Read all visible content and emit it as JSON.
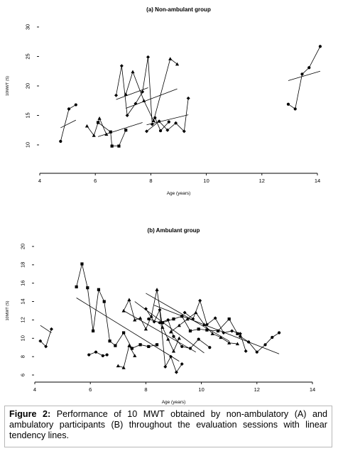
{
  "caption": {
    "label": "Figure 2:",
    "text": "Performance of 10 MWT obtained by non-ambulatory (A) and ambulatory participants (B) throughout the evaluation sessions with linear tendency lines."
  },
  "chart_data": [
    {
      "type": "scatter",
      "title": "(a) Non-ambulant group",
      "xlabel": "Age (years)",
      "ylabel": "10MWT (S)",
      "xlim": [
        4,
        14
      ],
      "ylim": [
        10,
        30
      ],
      "xticks": [
        4,
        6,
        8,
        10,
        12,
        14
      ],
      "yticks": [
        10,
        15,
        20,
        25,
        30
      ],
      "grid": false,
      "series": [
        {
          "marker": "circle",
          "points": [
            [
              4.75,
              10.6
            ],
            [
              5.05,
              16.1
            ],
            [
              5.3,
              16.8
            ]
          ]
        },
        {
          "marker": "triangle",
          "points": [
            [
              5.7,
              13.2
            ],
            [
              5.95,
              11.6
            ],
            [
              6.15,
              14.5
            ],
            [
              6.4,
              11.8
            ]
          ]
        },
        {
          "marker": "square",
          "points": [
            [
              6.1,
              13.8
            ],
            [
              6.55,
              12.2
            ],
            [
              6.6,
              9.8
            ],
            [
              6.85,
              9.8
            ],
            [
              7.1,
              12.5
            ]
          ]
        },
        {
          "marker": "diamond",
          "points": [
            [
              6.75,
              18.4
            ],
            [
              6.95,
              23.4
            ],
            [
              7.15,
              15.0
            ],
            [
              7.45,
              17.0
            ],
            [
              7.7,
              19.0
            ],
            [
              7.9,
              24.9
            ],
            [
              8.05,
              13.5
            ]
          ]
        },
        {
          "marker": "triangle",
          "points": [
            [
              7.1,
              18.6
            ],
            [
              7.35,
              22.4
            ],
            [
              7.75,
              17.5
            ],
            [
              8.1,
              14.1
            ],
            [
              8.7,
              24.6
            ],
            [
              8.95,
              23.7
            ]
          ]
        },
        {
          "marker": "diamond",
          "points": [
            [
              7.85,
              12.3
            ],
            [
              8.3,
              14.0
            ],
            [
              8.6,
              12.5
            ],
            [
              8.9,
              13.7
            ],
            [
              9.2,
              12.3
            ],
            [
              9.35,
              17.9
            ]
          ]
        },
        {
          "marker": "circle",
          "points": [
            [
              8.15,
              14.6
            ],
            [
              8.35,
              12.4
            ],
            [
              8.65,
              13.9
            ]
          ]
        },
        {
          "marker": "circle",
          "points": [
            [
              12.95,
              16.9
            ],
            [
              13.2,
              16.1
            ],
            [
              13.45,
              22.0
            ],
            [
              13.7,
              23.1
            ],
            [
              14.1,
              26.7
            ]
          ]
        }
      ],
      "trendlines": [
        {
          "x": [
            4.75,
            5.3
          ],
          "y": [
            12.9,
            14.2
          ]
        },
        {
          "x": [
            6.1,
            7.7
          ],
          "y": [
            11.4,
            13.8
          ]
        },
        {
          "x": [
            6.75,
            7.9
          ],
          "y": [
            17.7,
            19.7
          ]
        },
        {
          "x": [
            7.1,
            8.95
          ],
          "y": [
            16.2,
            19.5
          ]
        },
        {
          "x": [
            7.85,
            9.35
          ],
          "y": [
            13.4,
            15.1
          ]
        },
        {
          "x": [
            12.95,
            14.1
          ],
          "y": [
            20.9,
            22.5
          ]
        }
      ]
    },
    {
      "type": "scatter",
      "title": "(b) Ambulant group",
      "xlabel": "Age (years)",
      "ylabel": "10MWT (S)",
      "xlim": [
        4,
        14
      ],
      "ylim": [
        6,
        20
      ],
      "xticks": [
        4,
        6,
        8,
        10,
        12,
        14
      ],
      "yticks": [
        6,
        8,
        10,
        12,
        14,
        16,
        18,
        20
      ],
      "grid": false,
      "series": [
        {
          "marker": "diamond",
          "points": [
            [
              4.2,
              9.7
            ],
            [
              4.4,
              9.1
            ],
            [
              4.6,
              11.0
            ]
          ]
        },
        {
          "marker": "square",
          "points": [
            [
              5.5,
              15.6
            ],
            [
              5.7,
              18.1
            ],
            [
              5.9,
              15.5
            ],
            [
              6.1,
              10.8
            ],
            [
              6.3,
              15.3
            ],
            [
              6.5,
              14.0
            ],
            [
              6.7,
              9.7
            ],
            [
              6.9,
              9.2
            ],
            [
              7.2,
              10.6
            ],
            [
              7.5,
              8.9
            ],
            [
              7.8,
              9.3
            ],
            [
              8.1,
              9.1
            ],
            [
              8.4,
              9.3
            ]
          ]
        },
        {
          "marker": "circle",
          "points": [
            [
              5.95,
              8.2
            ],
            [
              6.2,
              8.5
            ],
            [
              6.45,
              8.1
            ],
            [
              6.6,
              8.2
            ]
          ]
        },
        {
          "marker": "triangle",
          "points": [
            [
              7.0,
              7.0
            ],
            [
              7.2,
              6.8
            ],
            [
              7.4,
              9.2
            ],
            [
              7.6,
              8.1
            ]
          ]
        },
        {
          "marker": "triangle",
          "points": [
            [
              7.2,
              13.0
            ],
            [
              7.4,
              14.2
            ],
            [
              7.6,
              12.0
            ],
            [
              7.8,
              12.2
            ],
            [
              8.0,
              11.0
            ],
            [
              8.2,
              12.4
            ],
            [
              8.4,
              15.3
            ],
            [
              8.6,
              11.2
            ],
            [
              8.8,
              9.9
            ],
            [
              9.0,
              8.6
            ],
            [
              9.2,
              10.0
            ]
          ]
        },
        {
          "marker": "diamond",
          "points": [
            [
              8.0,
              13.2
            ],
            [
              8.3,
              11.8
            ],
            [
              8.5,
              13.1
            ],
            [
              8.7,
              6.9
            ],
            [
              8.9,
              8.0
            ],
            [
              9.1,
              6.3
            ],
            [
              9.3,
              7.2
            ]
          ]
        },
        {
          "marker": "circle",
          "points": [
            [
              8.1,
              12.1
            ],
            [
              8.5,
              11.7
            ],
            [
              8.8,
              12.0
            ],
            [
              9.0,
              10.2
            ],
            [
              9.3,
              9.1
            ],
            [
              9.6,
              8.9
            ],
            [
              9.9,
              9.9
            ],
            [
              10.3,
              9.0
            ]
          ]
        },
        {
          "marker": "square",
          "points": [
            [
              8.6,
              11.7
            ],
            [
              9.0,
              12.1
            ],
            [
              9.3,
              12.4
            ],
            [
              9.6,
              10.8
            ],
            [
              9.9,
              11.0
            ],
            [
              10.2,
              10.9
            ],
            [
              10.6,
              10.8
            ],
            [
              11.0,
              12.1
            ],
            [
              11.3,
              10.5
            ]
          ]
        },
        {
          "marker": "triangle",
          "points": [
            [
              8.9,
              10.7
            ],
            [
              9.2,
              11.4
            ],
            [
              9.5,
              12.1
            ],
            [
              9.8,
              12.8
            ],
            [
              10.1,
              11.5
            ],
            [
              10.4,
              10.5
            ],
            [
              10.7,
              10.1
            ],
            [
              11.0,
              9.5
            ],
            [
              11.3,
              9.4
            ]
          ]
        },
        {
          "marker": "diamond",
          "points": [
            [
              9.4,
              12.8
            ],
            [
              9.7,
              12.1
            ],
            [
              9.95,
              14.1
            ],
            [
              10.2,
              11.5
            ],
            [
              10.5,
              12.2
            ],
            [
              10.8,
              10.6
            ],
            [
              11.1,
              10.8
            ],
            [
              11.4,
              10.5
            ],
            [
              11.6,
              8.6
            ]
          ]
        },
        {
          "marker": "circle",
          "points": [
            [
              11.4,
              10.2
            ],
            [
              11.7,
              9.6
            ],
            [
              12.0,
              8.5
            ],
            [
              12.3,
              9.3
            ],
            [
              12.55,
              10.1
            ],
            [
              12.8,
              10.6
            ]
          ]
        }
      ],
      "trendlines": [
        {
          "x": [
            4.2,
            4.6
          ],
          "y": [
            11.4,
            10.6
          ]
        },
        {
          "x": [
            5.5,
            9.2
          ],
          "y": [
            14.4,
            7.5
          ]
        },
        {
          "x": [
            7.2,
            9.8
          ],
          "y": [
            13.0,
            8.5
          ]
        },
        {
          "x": [
            7.6,
            10.1
          ],
          "y": [
            14.0,
            8.4
          ]
        },
        {
          "x": [
            8.0,
            11.0
          ],
          "y": [
            14.9,
            9.7
          ]
        },
        {
          "x": [
            8.3,
            12.8
          ],
          "y": [
            13.6,
            8.3
          ]
        }
      ]
    }
  ]
}
